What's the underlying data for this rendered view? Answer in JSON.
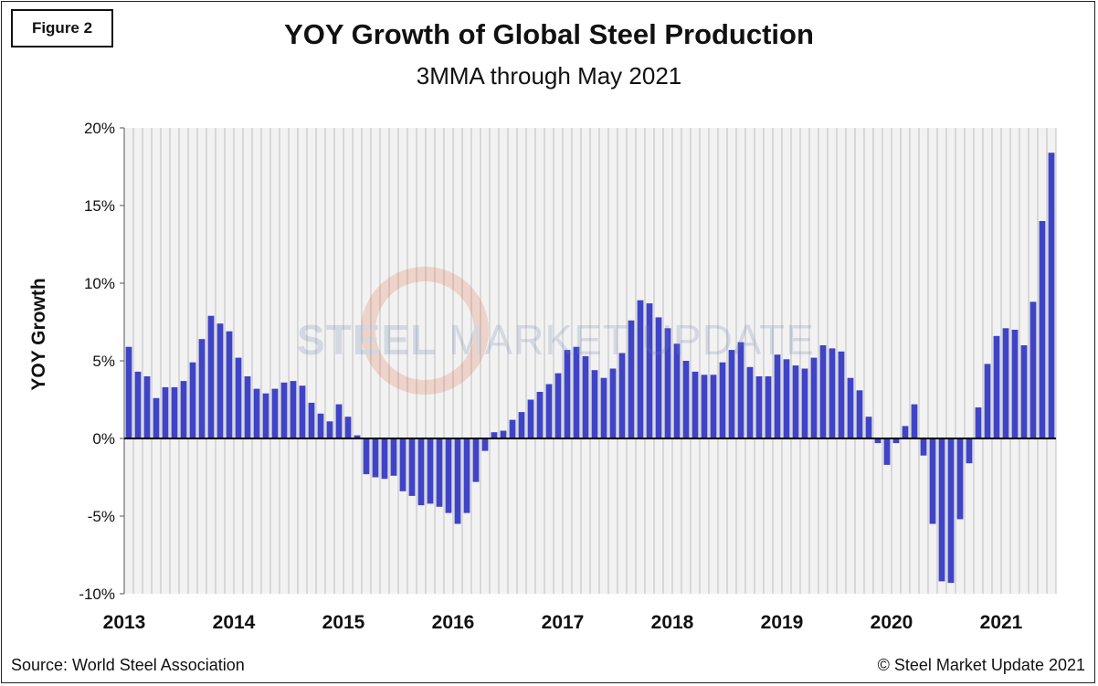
{
  "figure_label": "Figure 2",
  "source": "Source: World Steel Association",
  "copyright": "© Steel Market Update 2021",
  "watermark": {
    "part1": "STEEL",
    "part2": "MARKET",
    "part3": "UPDATE"
  },
  "colors": {
    "bar": "#3f44c6",
    "plot_bg": "#f2f2f2",
    "grid": "#bdbdbd",
    "zero_line": "#000000"
  },
  "chart_data": {
    "type": "bar",
    "title": "YOY Growth of Global Steel Production",
    "subtitle": "3MMA through May 2021",
    "xlabel": "",
    "ylabel": "YOY Growth",
    "ylim": [
      -10,
      20
    ],
    "yticks": [
      -10,
      -5,
      0,
      5,
      10,
      15,
      20
    ],
    "ytick_labels": [
      "-10%",
      "-5%",
      "0%",
      "5%",
      "10%",
      "15%",
      "20%"
    ],
    "x_year_labels": [
      "2013",
      "2014",
      "2015",
      "2016",
      "2017",
      "2018",
      "2019",
      "2020",
      "2021"
    ],
    "start": "2013-01",
    "end": "2021-05",
    "grid": "vertical",
    "values": [
      5.9,
      4.3,
      4.0,
      2.6,
      3.3,
      3.3,
      3.7,
      4.9,
      6.4,
      7.9,
      7.4,
      6.9,
      5.2,
      4.0,
      3.2,
      2.9,
      3.2,
      3.6,
      3.7,
      3.4,
      2.3,
      1.6,
      1.1,
      2.2,
      1.4,
      0.2,
      -2.3,
      -2.5,
      -2.6,
      -2.4,
      -3.4,
      -3.7,
      -4.3,
      -4.2,
      -4.4,
      -4.8,
      -5.5,
      -4.8,
      -2.8,
      -0.8,
      0.4,
      0.5,
      1.2,
      1.7,
      2.5,
      3.0,
      3.5,
      4.2,
      5.7,
      5.9,
      5.3,
      4.4,
      3.9,
      4.5,
      5.5,
      7.6,
      8.9,
      8.7,
      7.8,
      7.1,
      6.1,
      5.0,
      4.3,
      4.1,
      4.1,
      4.9,
      5.7,
      6.2,
      4.6,
      4.0,
      4.0,
      5.4,
      5.1,
      4.7,
      4.5,
      5.2,
      6.0,
      5.8,
      5.6,
      3.9,
      3.1,
      1.4,
      -0.3,
      -1.7,
      -0.3,
      0.8,
      2.2,
      -1.1,
      -5.5,
      -9.2,
      -9.3,
      -5.2,
      -1.6,
      2.0,
      4.8,
      6.6,
      7.1,
      7.0,
      6.0,
      8.8,
      14.0,
      18.4
    ]
  }
}
